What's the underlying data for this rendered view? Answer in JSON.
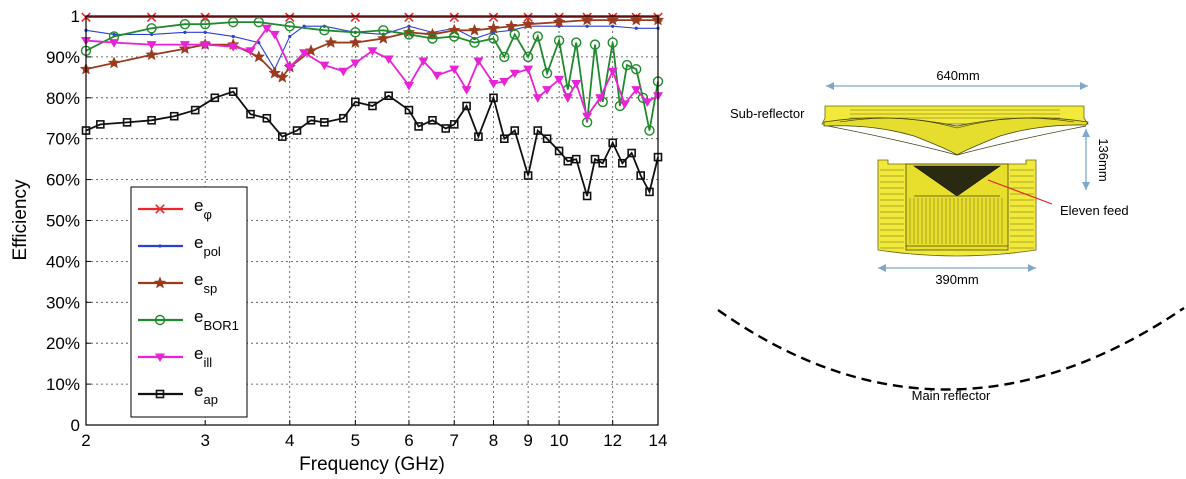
{
  "chart_data": {
    "type": "line",
    "xlabel": "Frequency (GHz)",
    "ylabel": "Efficiency",
    "xscale": "log",
    "xlim": [
      2,
      14
    ],
    "ylim": [
      0,
      1
    ],
    "xticks": [
      2,
      3,
      4,
      5,
      6,
      7,
      8,
      9,
      10,
      12,
      14
    ],
    "xtick_labels": [
      "2",
      "3",
      "4",
      "5",
      "6",
      "7",
      "8",
      "9",
      "10",
      "12",
      "14"
    ],
    "yticks": [
      0,
      0.1,
      0.2,
      0.3,
      0.4,
      0.5,
      0.6,
      0.7,
      0.8,
      0.9,
      1.0
    ],
    "ytick_labels": [
      "0",
      "10%",
      "20%",
      "30%",
      "40%",
      "50%",
      "60%",
      "70%",
      "80%",
      "90%",
      "1"
    ],
    "grid": true,
    "legend_position": "lower-left",
    "series": [
      {
        "name": "eφ",
        "base": "e",
        "sub": "φ",
        "color": "#e8282b",
        "marker": "x",
        "x": [
          2.0,
          2.5,
          3.0,
          4.0,
          5.0,
          6.0,
          7.0,
          8.0,
          9.0,
          10.0,
          11.0,
          12.0,
          13.0,
          14.0
        ],
        "y": [
          0.997,
          0.997,
          0.997,
          0.997,
          0.997,
          0.997,
          0.997,
          0.997,
          0.997,
          0.997,
          0.997,
          0.997,
          0.997,
          0.997
        ]
      },
      {
        "name": "epol",
        "base": "e",
        "sub": "pol",
        "color": "#2b3fd6",
        "marker": "dot",
        "x": [
          2.0,
          2.2,
          2.5,
          2.8,
          3.0,
          3.3,
          3.6,
          3.8,
          4.0,
          4.2,
          4.5,
          5.0,
          5.5,
          6.0,
          6.5,
          7.0,
          7.5,
          8.0,
          8.5,
          9.0,
          10.0,
          11.0,
          12.0,
          13.0,
          14.0
        ],
        "y": [
          0.965,
          0.955,
          0.955,
          0.96,
          0.96,
          0.95,
          0.935,
          0.87,
          0.95,
          0.975,
          0.975,
          0.96,
          0.955,
          0.975,
          0.96,
          0.97,
          0.945,
          0.96,
          0.965,
          0.975,
          0.975,
          0.975,
          0.975,
          0.97,
          0.97
        ]
      },
      {
        "name": "esp",
        "base": "e",
        "sub": "sp",
        "color": "#9b3b1e",
        "marker": "star",
        "x": [
          2.0,
          2.2,
          2.5,
          2.8,
          3.0,
          3.3,
          3.6,
          3.8,
          3.9,
          4.0,
          4.3,
          4.6,
          5.0,
          5.5,
          6.0,
          6.5,
          7.0,
          7.5,
          8.0,
          8.5,
          9.0,
          10.0,
          11.0,
          12.0,
          13.0,
          14.0
        ],
        "y": [
          0.87,
          0.885,
          0.905,
          0.92,
          0.93,
          0.93,
          0.9,
          0.86,
          0.85,
          0.875,
          0.915,
          0.935,
          0.935,
          0.945,
          0.96,
          0.955,
          0.965,
          0.965,
          0.97,
          0.975,
          0.98,
          0.985,
          0.99,
          0.99,
          0.99,
          0.99
        ]
      },
      {
        "name": "eBOR1",
        "base": "e",
        "sub": "BOR1",
        "color": "#1e8a2b",
        "marker": "circle",
        "x": [
          2.0,
          2.2,
          2.5,
          2.8,
          3.0,
          3.3,
          3.6,
          4.0,
          4.5,
          5.0,
          5.5,
          6.0,
          6.5,
          7.0,
          7.5,
          8.0,
          8.3,
          8.6,
          9.0,
          9.3,
          9.6,
          10.0,
          10.3,
          10.6,
          11.0,
          11.3,
          11.6,
          12.0,
          12.3,
          12.6,
          13.0,
          13.3,
          13.6,
          14.0
        ],
        "y": [
          0.915,
          0.95,
          0.97,
          0.98,
          0.98,
          0.985,
          0.985,
          0.975,
          0.965,
          0.96,
          0.965,
          0.955,
          0.945,
          0.95,
          0.935,
          0.945,
          0.9,
          0.955,
          0.9,
          0.95,
          0.86,
          0.94,
          0.82,
          0.935,
          0.74,
          0.93,
          0.79,
          0.935,
          0.78,
          0.88,
          0.87,
          0.8,
          0.72,
          0.84
        ]
      },
      {
        "name": "eill",
        "base": "e",
        "sub": "ill",
        "color": "#e822d6",
        "marker": "triangle-down",
        "x": [
          2.0,
          2.2,
          2.5,
          2.8,
          3.0,
          3.3,
          3.5,
          3.7,
          3.8,
          4.0,
          4.2,
          4.5,
          4.8,
          5.0,
          5.3,
          5.6,
          6.0,
          6.3,
          6.6,
          7.0,
          7.3,
          7.6,
          8.0,
          8.3,
          8.6,
          9.0,
          9.3,
          9.6,
          10.0,
          10.3,
          10.6,
          11.0,
          11.5,
          12.0,
          12.5,
          13.0,
          13.5,
          14.0
        ],
        "y": [
          0.94,
          0.935,
          0.93,
          0.93,
          0.93,
          0.925,
          0.915,
          0.97,
          0.955,
          0.875,
          0.91,
          0.88,
          0.865,
          0.885,
          0.915,
          0.895,
          0.83,
          0.89,
          0.855,
          0.87,
          0.82,
          0.89,
          0.835,
          0.84,
          0.86,
          0.87,
          0.8,
          0.82,
          0.845,
          0.8,
          0.835,
          0.755,
          0.8,
          0.865,
          0.785,
          0.82,
          0.79,
          0.805
        ]
      },
      {
        "name": "eap",
        "base": "e",
        "sub": "ap",
        "color": "#111111",
        "marker": "square",
        "x": [
          2.0,
          2.1,
          2.3,
          2.5,
          2.7,
          2.9,
          3.1,
          3.3,
          3.5,
          3.7,
          3.9,
          4.1,
          4.3,
          4.5,
          4.8,
          5.0,
          5.3,
          5.6,
          6.0,
          6.2,
          6.5,
          6.8,
          7.0,
          7.3,
          7.6,
          8.0,
          8.3,
          8.6,
          9.0,
          9.3,
          9.6,
          10.0,
          10.3,
          10.6,
          11.0,
          11.3,
          11.6,
          12.0,
          12.4,
          12.8,
          13.2,
          13.6,
          14.0
        ],
        "y": [
          0.72,
          0.735,
          0.74,
          0.745,
          0.755,
          0.77,
          0.8,
          0.815,
          0.76,
          0.75,
          0.705,
          0.72,
          0.745,
          0.74,
          0.75,
          0.79,
          0.78,
          0.805,
          0.77,
          0.73,
          0.745,
          0.725,
          0.735,
          0.78,
          0.705,
          0.8,
          0.7,
          0.72,
          0.61,
          0.72,
          0.7,
          0.67,
          0.645,
          0.65,
          0.56,
          0.65,
          0.64,
          0.69,
          0.64,
          0.665,
          0.61,
          0.57,
          0.655
        ]
      }
    ]
  },
  "diagram": {
    "width_label": "640mm",
    "height_label": "136mm",
    "feed_width_label": "390mm",
    "subreflector_label": "Sub-reflector",
    "feed_label": "Eleven feed",
    "main_reflector_label": "Main reflector"
  }
}
